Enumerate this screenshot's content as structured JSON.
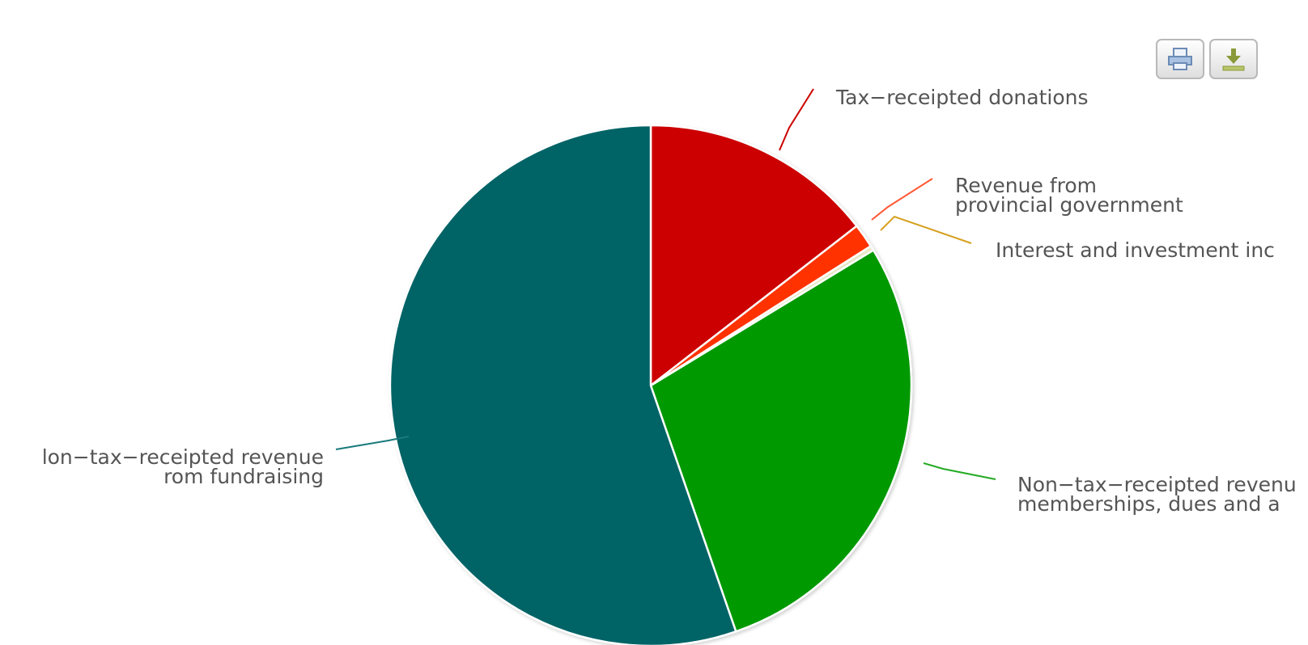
{
  "toolbar": {
    "print_icon": "print-icon",
    "download_icon": "download-icon"
  },
  "chart_data": {
    "type": "pie",
    "start_angle_deg": 0,
    "direction": "clockwise",
    "slices": [
      {
        "label": "Tax−receipted donations",
        "label_lines": [
          "Tax−receipted donations"
        ],
        "value": 14.5,
        "color": "#cc0000",
        "connector_color": "#cc0000"
      },
      {
        "label": "Revenue from provincial government",
        "label_lines": [
          "Revenue from",
          "provincial government"
        ],
        "value": 1.5,
        "color": "#ff3300",
        "connector_color": "#ff5533"
      },
      {
        "label": "Interest and investment inc",
        "label_lines": [
          "Interest and investment inc"
        ],
        "value": 0.3,
        "color": "#e8e8c8",
        "connector_color": "#d6a020"
      },
      {
        "label": "Non−tax−receipted revenu memberships, dues and a",
        "label_lines": [
          "Non−tax−receipted revenu",
          "memberships, dues and a"
        ],
        "value": 28.4,
        "color": "#009900",
        "connector_color": "#22aa22"
      },
      {
        "label": "lon−tax−receipted revenue rom fundraising",
        "label_lines": [
          "lon−tax−receipted revenue",
          "rom fundraising"
        ],
        "value": 55.3,
        "color": "#006466",
        "connector_color": "#1a7a7c"
      }
    ]
  }
}
